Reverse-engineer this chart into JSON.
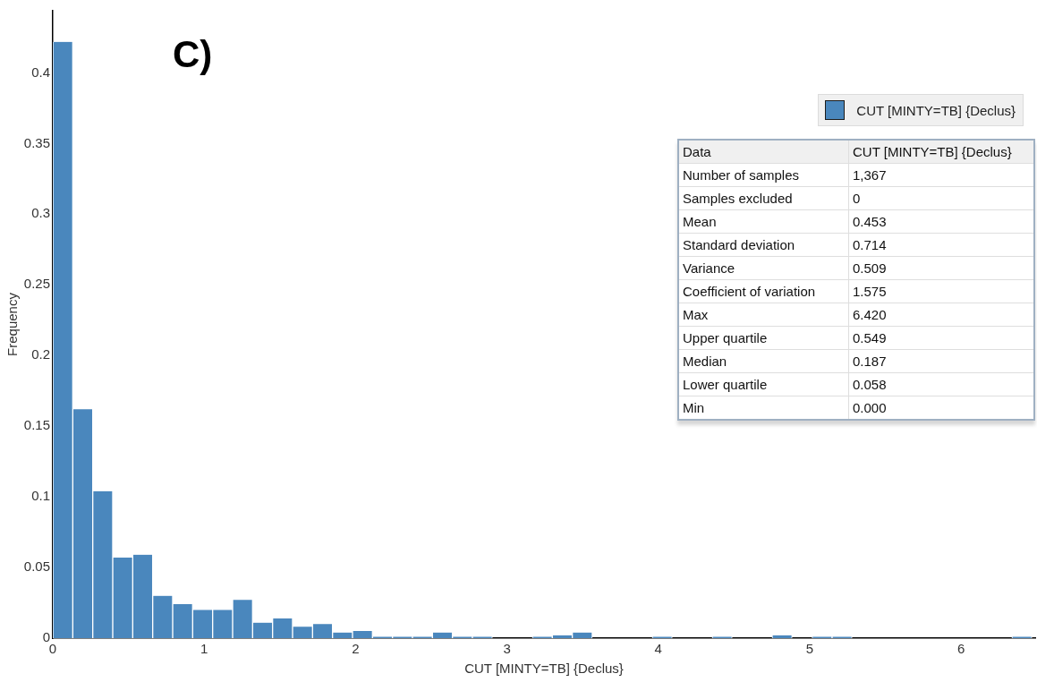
{
  "chart_data": [
    {
      "type": "histogram",
      "xlabel": "CUT [MINTY=TB] {Declus}",
      "ylabel": "Frequency",
      "annotations": [
        "C)"
      ],
      "bins": [
        0,
        0.132,
        0.264,
        0.396,
        0.528,
        0.66,
        0.792,
        0.924,
        1.056,
        1.188,
        1.32,
        1.452,
        1.584,
        1.716,
        1.848,
        1.98,
        2.112,
        2.244,
        2.376,
        2.508,
        2.64,
        2.772,
        2.904,
        3.036,
        3.168,
        3.3,
        3.432,
        3.564,
        3.696,
        3.828,
        3.96,
        4.092,
        4.224,
        4.356,
        4.488,
        4.62,
        4.752,
        4.884,
        5.016,
        5.148,
        5.28,
        5.412,
        5.544,
        5.676,
        5.808,
        5.94,
        6.072,
        6.204,
        6.336,
        6.468
      ],
      "series": [
        {
          "name": "CUT [MINTY=TB] {Declus}",
          "color": "#4a87bd",
          "values": [
            0.422,
            0.162,
            0.104,
            0.057,
            0.059,
            0.03,
            0.024,
            0.02,
            0.02,
            0.027,
            0.011,
            0.014,
            0.008,
            0.01,
            0.004,
            0.005,
            0.001,
            0.001,
            0.001,
            0.004,
            0.001,
            0.001,
            0,
            0,
            0.001,
            0.002,
            0.004,
            0,
            0,
            0,
            0.001,
            0,
            0,
            0.001,
            0,
            0,
            0.002,
            0,
            0.001,
            0.001,
            0,
            0,
            0,
            0,
            0,
            0,
            0,
            0,
            0.001
          ]
        }
      ],
      "xlim": [
        0,
        6.49
      ],
      "ylim": [
        0,
        0.444
      ],
      "xticks": [
        0,
        1,
        2,
        3,
        4,
        5,
        6
      ],
      "yticks": [
        0,
        0.05,
        0.1,
        0.15,
        0.2,
        0.25,
        0.3,
        0.35,
        0.4
      ],
      "legend": "top right"
    },
    {
      "type": "other",
      "annotations": [
        "Data",
        "CUT [MINTY=TB] {Declus}",
        "Number of samples",
        "1,367",
        "Samples excluded",
        "0",
        "Mean",
        "0.453",
        "Standard deviation",
        "0.714",
        "Variance",
        "0.509",
        "Coefficient of variation",
        "1.575",
        "Max",
        "6.420",
        "Upper quartile",
        "0.549",
        "Median",
        "0.187",
        "Lower quartile",
        "0.058",
        "Min",
        "0.000"
      ]
    }
  ]
}
